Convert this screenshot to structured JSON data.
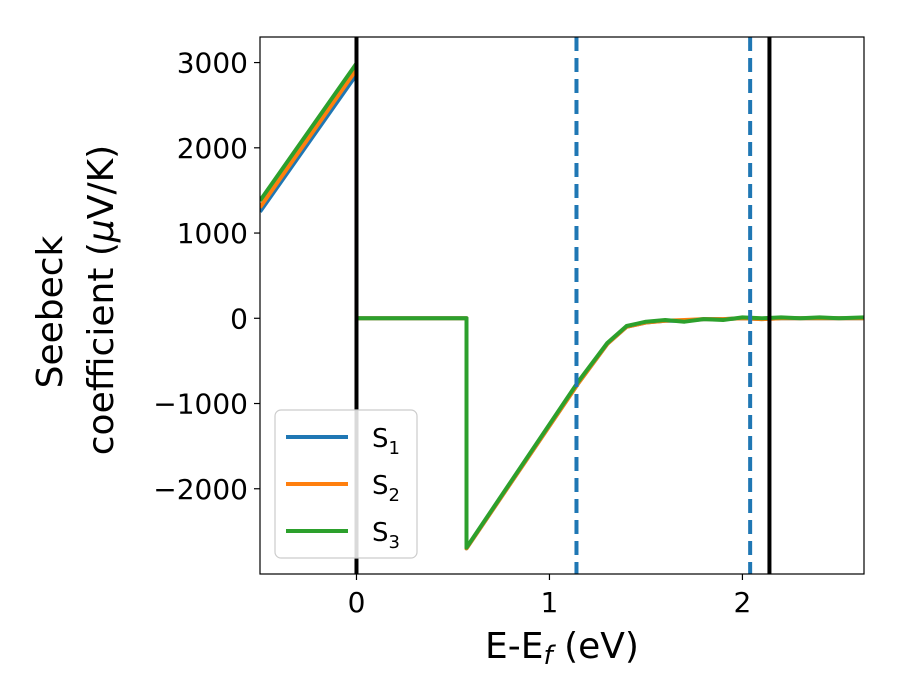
{
  "chart_data": {
    "type": "line",
    "xlabel": {
      "main": "E-E",
      "sub": "f",
      "tail": " (eV)"
    },
    "ylabel": {
      "line1": "Seebeck",
      "line2": "coefficient  (",
      "mu": "μ",
      "line2_tail": "V/K)"
    },
    "xlim": [
      -0.5,
      2.63
    ],
    "ylim": [
      -3000,
      3300
    ],
    "xticks": [
      0,
      1,
      2
    ],
    "xtick_labels": [
      "0",
      "1",
      "2"
    ],
    "yticks": [
      3000,
      2000,
      1000,
      0,
      -1000,
      -2000
    ],
    "ytick_labels": [
      "3000",
      "2000",
      "1000",
      "0",
      "−1000",
      "−2000"
    ],
    "series": [
      {
        "name": "S1",
        "name_main": "S",
        "name_sub": "1",
        "color": "#1f77b4",
        "x": [
          -0.5,
          0.0,
          0.0,
          0.57,
          0.57,
          1.15,
          1.3,
          1.4,
          1.5,
          1.6,
          1.7,
          1.8,
          1.9,
          2.0,
          2.1,
          2.2,
          2.3,
          2.4,
          2.5,
          2.63
        ],
        "y": [
          1250,
          2860,
          0,
          0,
          -2700,
          -760,
          -300,
          -100,
          -50,
          -30,
          -30,
          -10,
          -10,
          0,
          -10,
          0,
          0,
          0,
          0,
          0
        ]
      },
      {
        "name": "S2",
        "name_main": "S",
        "name_sub": "2",
        "color": "#ff7f0e",
        "x": [
          -0.5,
          0.0,
          0.0,
          0.57,
          0.57,
          1.15,
          1.3,
          1.4,
          1.5,
          1.6,
          1.7,
          1.8,
          1.9,
          2.0,
          2.1,
          2.2,
          2.3,
          2.4,
          2.5,
          2.63
        ],
        "y": [
          1300,
          2920,
          0,
          0,
          -2700,
          -760,
          -300,
          -100,
          -50,
          -30,
          -20,
          -10,
          -10,
          0,
          -10,
          0,
          0,
          0,
          0,
          0
        ]
      },
      {
        "name": "S3",
        "name_main": "S",
        "name_sub": "3",
        "color": "#2ca02c",
        "x": [
          -0.5,
          0.0,
          0.0,
          0.57,
          0.57,
          1.15,
          1.3,
          1.4,
          1.5,
          1.6,
          1.7,
          1.8,
          1.9,
          2.0,
          2.1,
          2.2,
          2.3,
          2.4,
          2.5,
          2.63
        ],
        "y": [
          1380,
          2990,
          0,
          0,
          -2690,
          -740,
          -290,
          -90,
          -40,
          -20,
          -40,
          -10,
          -20,
          10,
          0,
          10,
          0,
          10,
          0,
          10
        ]
      }
    ],
    "vlines": [
      {
        "x": 0.0,
        "style": "solid",
        "color": "#000000"
      },
      {
        "x": 1.14,
        "style": "dashed",
        "color": "#1f77b4"
      },
      {
        "x": 2.04,
        "style": "dashed",
        "color": "#1f77b4"
      },
      {
        "x": 2.14,
        "style": "solid",
        "color": "#000000"
      }
    ],
    "legend_position": "lower-left",
    "grid": false
  }
}
